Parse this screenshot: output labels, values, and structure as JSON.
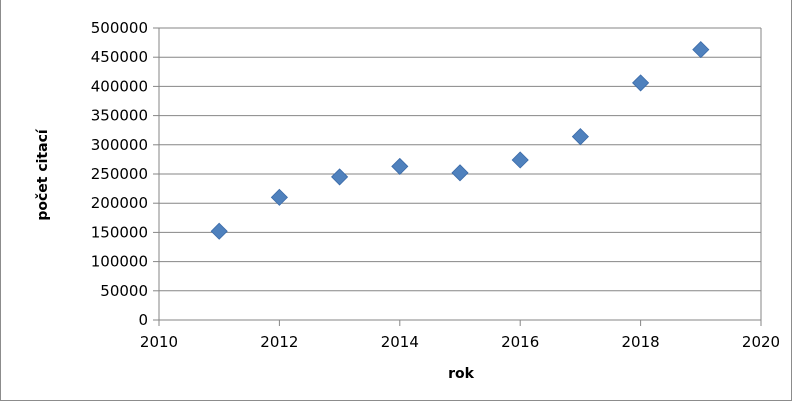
{
  "chart_data": {
    "type": "scatter",
    "title": "",
    "xlabel": "rok",
    "ylabel": "počet citací",
    "xlim": [
      2010,
      2020
    ],
    "ylim": [
      0,
      500000
    ],
    "x_ticks": [
      2010,
      2012,
      2014,
      2016,
      2018,
      2020
    ],
    "y_ticks": [
      0,
      50000,
      100000,
      150000,
      200000,
      250000,
      300000,
      350000,
      400000,
      450000,
      500000
    ],
    "grid": "horizontal",
    "legend": "none",
    "marker": "diamond",
    "marker_color": "#4f81bd",
    "series": [
      {
        "x": [
          2011,
          2012,
          2013,
          2014,
          2015,
          2016,
          2017,
          2018,
          2019
        ],
        "y": [
          152000,
          210000,
          245000,
          263000,
          252000,
          274000,
          314000,
          406000,
          463000
        ]
      }
    ]
  }
}
